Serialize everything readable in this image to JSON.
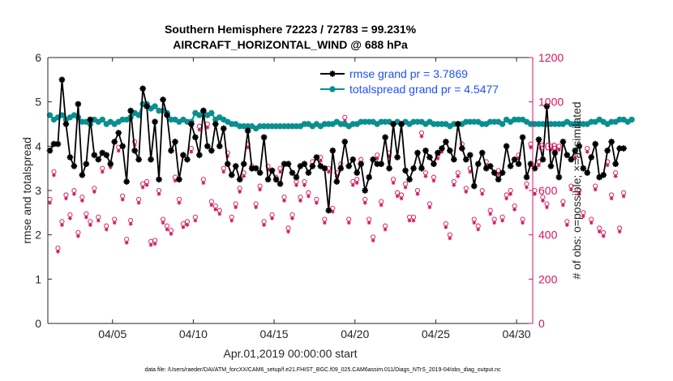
{
  "colors": {
    "rmse": "#000000",
    "spread": "#0a8f8f",
    "obs": "#d6145c",
    "legend_text": "#1f4fff",
    "axis": "#262626"
  },
  "chart_data": {
    "type": "line",
    "title": "Southern Hemisphere 72223 / 72783 = 99.231%",
    "subtitle": "AIRCRAFT_HORIZONTAL_WIND @ 688 hPa",
    "xlabel": "Apr.01,2019 00:00:00 start",
    "ylabel": "rmse and totalspread",
    "y2label": "# of obs: o=possible; ×=assimilated",
    "xlim": [
      1.0,
      31.0
    ],
    "ylim": [
      0,
      6
    ],
    "y2lim": [
      0,
      1200
    ],
    "x_ticks": [
      {
        "value": 5,
        "label": "04/05"
      },
      {
        "value": 10,
        "label": "04/10"
      },
      {
        "value": 15,
        "label": "04/15"
      },
      {
        "value": 20,
        "label": "04/20"
      },
      {
        "value": 25,
        "label": "04/25"
      },
      {
        "value": 30,
        "label": "04/30"
      }
    ],
    "y_ticks": [
      "0",
      "1",
      "2",
      "3",
      "4",
      "5",
      "6"
    ],
    "y2_ticks": [
      "0",
      "200",
      "400",
      "600",
      "800",
      "1000",
      "1200"
    ],
    "legend": [
      {
        "name": "rmse grand pr = 3.7869"
      },
      {
        "name": "totalspread grand pr = 4.5477"
      }
    ],
    "footer": "data file: /Users/raeder/DAI/ATM_forcXX/CAM6_setup/f.e21.FHIST_BGC.f09_025.CAM6assim.011/Diags_NTrS_2019-04/obs_diag_output.nc",
    "series": [
      {
        "name": "rmse",
        "start": 1.125,
        "step": 0.25,
        "values": [
          3.9,
          4.05,
          4.05,
          5.5,
          4.5,
          3.75,
          3.55,
          4.95,
          3.35,
          3.6,
          4.6,
          3.8,
          3.7,
          3.85,
          3.8,
          3.6,
          4.1,
          4.3,
          4.0,
          3.2,
          4.8,
          3.9,
          3.7,
          5.3,
          4.9,
          3.7,
          4.55,
          3.25,
          5.05,
          4.7,
          3.9,
          4.1,
          3.25,
          3.8,
          3.7,
          4.5,
          4.2,
          3.8,
          4.8,
          4.0,
          3.9,
          4.5,
          4.0,
          4.4,
          3.6,
          3.35,
          3.55,
          3.25,
          3.6,
          4.35,
          3.5,
          3.5,
          3.4,
          4.2,
          3.25,
          3.45,
          3.25,
          3.15,
          3.6,
          3.6,
          3.4,
          3.3,
          3.55,
          3.6,
          3.4,
          3.55,
          3.75,
          3.55,
          3.5,
          2.55,
          3.9,
          3.2,
          3.5,
          4.1,
          3.55,
          3.7,
          3.4,
          3.6,
          3.0,
          3.3,
          3.7,
          3.6,
          3.6,
          4.2,
          3.5,
          4.5,
          3.75,
          4.5,
          3.45,
          3.25,
          3.5,
          3.85,
          3.5,
          3.9,
          3.75,
          3.6,
          3.85,
          3.95,
          4.1,
          3.9,
          3.7,
          4.5,
          3.95,
          3.7,
          3.8,
          3.1,
          3.6,
          3.85,
          3.5,
          3.55,
          3.4,
          3.25,
          3.4,
          4.0,
          3.55,
          3.7,
          3.6,
          4.2,
          3.3,
          3.6,
          3.5,
          4.15,
          3.7,
          4.9,
          3.55,
          3.85,
          3.3,
          4.1,
          3.8,
          3.7,
          3.9,
          4.0,
          3.5,
          3.4,
          3.75,
          4.05,
          3.3,
          3.35,
          3.9,
          4.1,
          3.6,
          3.95,
          3.95
        ],
        "marker": "star"
      },
      {
        "name": "totalspread",
        "start": 1.125,
        "step": 0.25,
        "values": [
          4.7,
          4.6,
          4.65,
          4.7,
          4.6,
          4.65,
          4.7,
          4.65,
          4.55,
          4.55,
          4.5,
          4.6,
          4.55,
          4.6,
          4.5,
          4.55,
          4.5,
          4.55,
          4.6,
          4.6,
          4.65,
          4.75,
          4.7,
          4.95,
          4.95,
          4.85,
          4.9,
          4.8,
          4.8,
          4.75,
          4.6,
          4.6,
          4.55,
          4.6,
          4.55,
          4.55,
          4.75,
          4.7,
          4.8,
          4.7,
          4.75,
          4.6,
          4.65,
          4.6,
          4.55,
          4.5,
          4.5,
          4.45,
          4.45,
          4.45,
          4.45,
          4.4,
          4.45,
          4.45,
          4.45,
          4.45,
          4.45,
          4.45,
          4.45,
          4.45,
          4.45,
          4.45,
          4.45,
          4.5,
          4.5,
          4.45,
          4.5,
          4.45,
          4.5,
          4.5,
          4.5,
          4.55,
          4.5,
          4.5,
          4.45,
          4.5,
          4.5,
          4.55,
          4.55,
          4.55,
          4.55,
          4.5,
          4.55,
          4.55,
          4.55,
          4.5,
          4.55,
          4.5,
          4.55,
          4.5,
          4.55,
          4.55,
          4.55,
          4.5,
          4.55,
          4.5,
          4.5,
          4.5,
          4.5,
          4.45,
          4.5,
          4.5,
          4.5,
          4.55,
          4.55,
          4.55,
          4.55,
          4.5,
          4.5,
          4.55,
          4.55,
          4.55,
          4.5,
          4.6,
          4.55,
          4.6,
          4.6,
          4.6,
          4.55,
          4.5,
          4.5,
          4.5,
          4.5,
          4.5,
          4.5,
          4.5,
          4.5,
          4.5,
          4.55,
          4.5,
          4.5,
          4.5,
          4.5,
          4.5,
          4.55,
          4.55,
          4.6,
          4.55,
          4.5,
          4.55,
          4.55,
          4.6,
          4.6,
          4.55,
          4.6
        ],
        "marker": "circle"
      },
      {
        "name": "obs_possible",
        "axis": "right",
        "start": 1.125,
        "step": 0.25,
        "values": [
          560,
          685,
          340,
          460,
          580,
          490,
          600,
          410,
          570,
          495,
          460,
          610,
          480,
          700,
          440,
          720,
          470,
          795,
          575,
          380,
          465,
          820,
          560,
          630,
          640,
          370,
          375,
          600,
          470,
          440,
          420,
          660,
          560,
          450,
          460,
          790,
          480,
          890,
          650,
          900,
          550,
          530,
          510,
          700,
          770,
          480,
          540,
          610,
          680,
          810,
          710,
          540,
          620,
          460,
          710,
          490,
          660,
          700,
          570,
          430,
          490,
          640,
          570,
          640,
          590,
          730,
          560,
          750,
          470,
          700,
          520,
          680,
          720,
          930,
          470,
          640,
          650,
          740,
          560,
          470,
          390,
          760,
          550,
          440,
          770,
          650,
          590,
          580,
          630,
          480,
          480,
          600,
          860,
          680,
          540,
          660,
          760,
          790,
          450,
          400,
          640,
          680,
          810,
          610,
          700,
          470,
          440,
          600,
          730,
          510,
          470,
          690,
          480,
          580,
          600,
          530,
          760,
          470,
          630,
          810,
          600,
          730,
          570,
          540,
          800,
          790,
          800,
          550,
          460,
          620,
          760,
          600,
          500,
          790,
          470,
          620,
          430,
          410,
          730,
          580,
          680,
          430,
          590
        ],
        "marker": "circle"
      },
      {
        "name": "obs_assimilated",
        "axis": "right",
        "start": 1.125,
        "step": 0.25,
        "values": [
          555,
          680,
          335,
          455,
          575,
          485,
          595,
          405,
          565,
          490,
          455,
          605,
          475,
          695,
          435,
          715,
          465,
          790,
          570,
          375,
          460,
          815,
          555,
          625,
          635,
          365,
          370,
          595,
          465,
          435,
          415,
          655,
          555,
          445,
          455,
          785,
          475,
          885,
          645,
          895,
          545,
          525,
          505,
          695,
          765,
          475,
          535,
          605,
          675,
          805,
          705,
          535,
          615,
          455,
          705,
          485,
          655,
          695,
          565,
          425,
          485,
          635,
          565,
          635,
          585,
          725,
          555,
          745,
          465,
          695,
          515,
          675,
          715,
          925,
          465,
          635,
          645,
          735,
          555,
          465,
          385,
          755,
          545,
          435,
          765,
          645,
          585,
          575,
          625,
          475,
          475,
          595,
          855,
          675,
          535,
          655,
          755,
          785,
          445,
          395,
          635,
          675,
          805,
          605,
          695,
          465,
          435,
          595,
          725,
          505,
          465,
          685,
          475,
          575,
          595,
          525,
          755,
          465,
          625,
          805,
          595,
          725,
          565,
          535,
          795,
          785,
          795,
          545,
          455,
          615,
          755,
          595,
          495,
          785,
          465,
          615,
          425,
          405,
          725,
          575,
          675,
          425,
          585
        ],
        "marker": "star"
      }
    ]
  }
}
